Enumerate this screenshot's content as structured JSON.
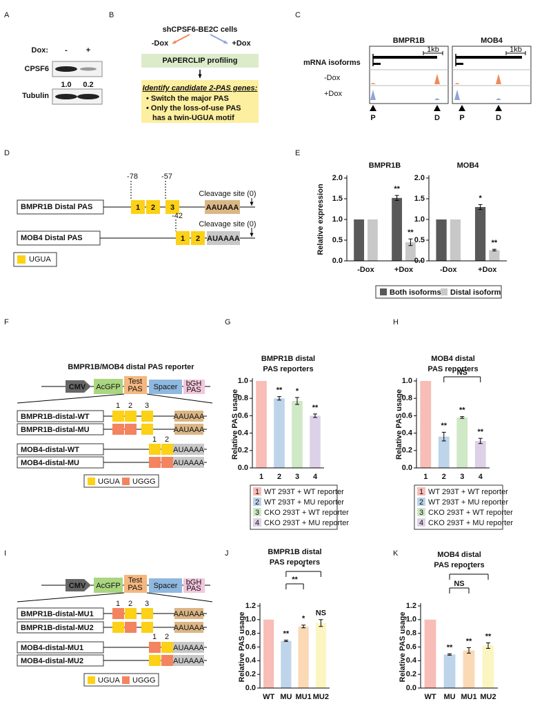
{
  "panel_labels": [
    "A",
    "B",
    "C",
    "D",
    "E",
    "F",
    "G",
    "H",
    "I",
    "J",
    "K"
  ],
  "panel_a": {
    "dox_label": "Dox:",
    "lanes": [
      "-",
      "+"
    ],
    "proteins": [
      "CPSF6",
      "Tubulin"
    ],
    "ratios": [
      "1.0",
      "0.2"
    ]
  },
  "panel_b": {
    "cells": "shCPSF6-BE2C cells",
    "minus": "-Dox",
    "plus": "+Dox",
    "method": "PAPERCLIP profiling",
    "box_title": "Identify candidate 2-PAS genes:",
    "bullets": [
      "• Switch the major PAS",
      "• Only the loss-of-use PAS"
    ],
    "bullet_cont": "has a twin-UGUA motif"
  },
  "panel_c": {
    "genes": [
      "BMPR1B",
      "MOB4"
    ],
    "track_label": "mRNA isoforms",
    "tracks": [
      "-Dox",
      "+Dox"
    ],
    "scale": "1kb",
    "sites": [
      "P",
      "D"
    ]
  },
  "panel_d": {
    "rows": [
      {
        "name": "BMPR1B Distal PAS",
        "positions": [
          "-78",
          "-57"
        ],
        "motifs": [
          "1",
          "2",
          "3"
        ],
        "signal": "AAUAAA"
      },
      {
        "name": "MOB4 Distal PAS",
        "positions": [
          "-42"
        ],
        "motifs": [
          "1",
          "2"
        ],
        "signal": "AUAAAA"
      }
    ],
    "cleavage": "Cleavage site (0)",
    "key": "UGUA"
  },
  "reporter": {
    "title": "BMPR1B/MOB4 distal PAS reporter",
    "parts": [
      [
        "CMV"
      ],
      [
        "AcGFP"
      ],
      [
        "Test",
        "PAS"
      ],
      [
        "Spacer"
      ],
      [
        "bGH",
        "PAS"
      ]
    ]
  },
  "panel_f": {
    "constructs": [
      "BMPR1B-distal-WT",
      "BMPR1B-distal-MU",
      "MOB4-distal-WT",
      "MOB4-distal-MU"
    ],
    "key": [
      "UGUA",
      "UGGG"
    ]
  },
  "panel_i": {
    "constructs": [
      "BMPR1B-distal-MU1",
      "BMPR1B-distal-MU2",
      "MOB4-distal-MU1",
      "MOB4-distal-MU2"
    ]
  },
  "chart_data": [
    {
      "type": "bar",
      "title": [
        "BMPR1B"
      ],
      "ylabel": "Relative expression",
      "categories": [
        "-Dox",
        "+Dox"
      ],
      "series": [
        {
          "name": "Both isoforms",
          "color": "#595959",
          "values": [
            1.0,
            1.52
          ],
          "errors": [
            0,
            0.06
          ],
          "significance": [
            null,
            "**"
          ]
        },
        {
          "name": "Distal isoform",
          "color": "#c8c8c8",
          "values": [
            1.0,
            0.45
          ],
          "errors": [
            0,
            0.08
          ],
          "significance": [
            null,
            "**"
          ]
        }
      ],
      "ylim": [
        0,
        2
      ],
      "yticks": [
        {
          "value": 0,
          "label": "0.0"
        },
        {
          "value": 0.5,
          "label": "0.5"
        },
        {
          "value": 1,
          "label": "1.0"
        },
        {
          "value": 1.5,
          "label": "1.5"
        },
        {
          "value": 2,
          "label": "2.0"
        }
      ]
    },
    {
      "type": "bar",
      "title": [
        "MOB4"
      ],
      "categories": [
        "-Dox",
        "+Dox"
      ],
      "series": [
        {
          "color": "#595959",
          "values": [
            1.0,
            1.3
          ],
          "errors": [
            0,
            0.06
          ],
          "significance": [
            null,
            "*"
          ]
        },
        {
          "color": "#c8c8c8",
          "values": [
            1.0,
            0.26
          ],
          "errors": [
            0,
            0.02
          ],
          "significance": [
            null,
            "**"
          ]
        }
      ],
      "ylim": [
        0,
        2
      ],
      "yticks": [
        {
          "value": 0,
          "label": "0.0"
        },
        {
          "value": 0.5,
          "label": "0.5"
        },
        {
          "value": 1,
          "label": "1.0"
        },
        {
          "value": 1.5,
          "label": "1.5"
        },
        {
          "value": 2,
          "label": "2.0"
        }
      ]
    },
    {
      "type": "bar",
      "title": [
        "BMPR1B distal",
        "PAS reporters"
      ],
      "ylabel": "Relative PAS usage",
      "categories": [
        "1",
        "2",
        "3",
        "4"
      ],
      "values": [
        1.0,
        0.8,
        0.77,
        0.6
      ],
      "errors": [
        0,
        0.02,
        0.04,
        0.02
      ],
      "colors": [
        "#f8bdb7",
        "#bdd4ea",
        "#cfe8c5",
        "#ddd1e7"
      ],
      "significance": [
        null,
        "**",
        "*",
        "**"
      ],
      "legend": [
        "WT 293T + WT reporter",
        "WT 293T + MU reporter",
        "CKO 293T + WT reporter",
        "CKO 293T + MU reporter"
      ],
      "ylim": [
        0,
        1
      ],
      "yticks": [
        {
          "value": 0,
          "label": "0.0"
        },
        {
          "value": 0.2,
          "label": "0.2"
        },
        {
          "value": 0.4,
          "label": "0.4"
        },
        {
          "value": 0.6,
          "label": "0.6"
        },
        {
          "value": 0.8,
          "label": "0.8"
        },
        {
          "value": 1,
          "label": "1.0"
        }
      ]
    },
    {
      "type": "bar",
      "title": [
        "MOB4 distal",
        "PAS reporters"
      ],
      "ylabel": "Relative PAS usage",
      "categories": [
        "1",
        "2",
        "3",
        "4"
      ],
      "values": [
        1.0,
        0.36,
        0.58,
        0.31
      ],
      "errors": [
        0,
        0.05,
        0.01,
        0.03
      ],
      "colors": [
        "#f8bdb7",
        "#bdd4ea",
        "#cfe8c5",
        "#ddd1e7"
      ],
      "significance": [
        null,
        "**",
        "**",
        "**"
      ],
      "brackets": [
        {
          "from": "2",
          "to": "4",
          "label": "NS"
        }
      ],
      "legend": [
        "WT 293T + WT reporter",
        "WT 293T + MU reporter",
        "CKO 293T + WT reporter",
        "CKO 293T + MU reporter"
      ],
      "ylim": [
        0,
        1
      ],
      "yticks": [
        {
          "value": 0,
          "label": "0.0"
        },
        {
          "value": 0.2,
          "label": "0.2"
        },
        {
          "value": 0.4,
          "label": "0.4"
        },
        {
          "value": 0.6,
          "label": "0.6"
        },
        {
          "value": 0.8,
          "label": "0.8"
        },
        {
          "value": 1,
          "label": "1.0"
        }
      ]
    },
    {
      "type": "bar",
      "title": [
        "BMPR1B distal",
        "PAS reporters"
      ],
      "ylabel": "Relative PAS usage",
      "categories": [
        "WT",
        "MU",
        "MU1",
        "MU2"
      ],
      "values": [
        1.0,
        0.69,
        0.9,
        0.95
      ],
      "errors": [
        0,
        0.01,
        0.02,
        0.05
      ],
      "colors": [
        "#f8bdb7",
        "#bdd4ea",
        "#fbd9b5",
        "#fbf5c2"
      ],
      "significance": [
        null,
        "**",
        "*",
        "NS"
      ],
      "brackets": [
        {
          "from": "MU",
          "to": "MU1",
          "label": "**"
        },
        {
          "from": "MU",
          "to": "MU2",
          "label": "*"
        }
      ],
      "ylim": [
        0,
        1.2
      ],
      "yticks": [
        {
          "value": 0,
          "label": "0.0"
        },
        {
          "value": 0.2,
          "label": "0.2"
        },
        {
          "value": 0.4,
          "label": "0.4"
        },
        {
          "value": 0.6,
          "label": "0.6"
        },
        {
          "value": 0.8,
          "label": "0.8"
        },
        {
          "value": 1,
          "label": "1.0"
        },
        {
          "value": 1.2,
          "label": "1.2"
        }
      ]
    },
    {
      "type": "bar",
      "title": [
        "MOB4 distal",
        "PAS reporters"
      ],
      "ylabel": "Relative PAS usage",
      "categories": [
        "WT",
        "MU",
        "MU1",
        "MU2"
      ],
      "values": [
        1.0,
        0.49,
        0.55,
        0.62
      ],
      "errors": [
        0,
        0.01,
        0.04,
        0.04
      ],
      "colors": [
        "#f8bdb7",
        "#bdd4ea",
        "#fbd9b5",
        "#fbf5c2"
      ],
      "significance": [
        null,
        "**",
        "**",
        "**"
      ],
      "brackets": [
        {
          "from": "MU",
          "to": "MU1",
          "label": "NS"
        },
        {
          "from": "MU",
          "to": "MU2",
          "label": "*"
        }
      ],
      "ylim": [
        0,
        1.2
      ],
      "yticks": [
        {
          "value": 0,
          "label": "0.0"
        },
        {
          "value": 0.2,
          "label": "0.2"
        },
        {
          "value": 0.4,
          "label": "0.4"
        },
        {
          "value": 0.6,
          "label": "0.6"
        },
        {
          "value": 0.8,
          "label": "0.8"
        },
        {
          "value": 1,
          "label": "1.0"
        },
        {
          "value": 1.2,
          "label": "1.2"
        }
      ]
    }
  ]
}
